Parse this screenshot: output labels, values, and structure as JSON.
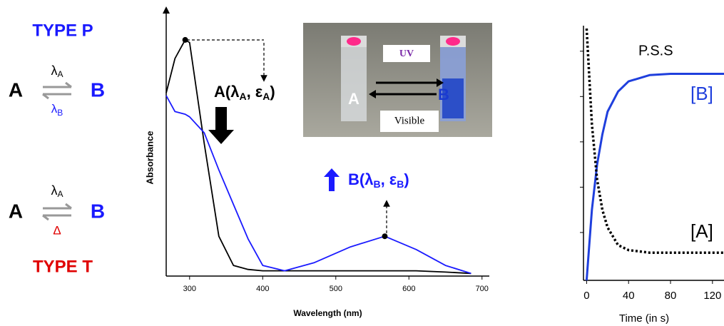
{
  "scheme": {
    "type_p": "TYPE P",
    "p_a": "A",
    "p_lambda_a": [
      "λ",
      "A"
    ],
    "p_lambda_b": [
      "λ",
      "B"
    ],
    "p_b": "B",
    "t_a": "A",
    "t_lambda_a": [
      "λ",
      "A"
    ],
    "t_delta": "Δ",
    "t_b": "B",
    "type_t": "TYPE T"
  },
  "photo": {
    "uv": "UV",
    "visible": "Visible",
    "a": "A",
    "b": "B"
  },
  "chart_data": [
    {
      "type": "line",
      "x_label": "Wavelength (nm)",
      "y_label": "Absorbance",
      "x": [
        268,
        280,
        294,
        300,
        320,
        340,
        360,
        380,
        400,
        430,
        470,
        520,
        567,
        610,
        650,
        685
      ],
      "series": [
        {
          "color": "#000000",
          "values": [
            0.69,
            0.82,
            0.89,
            0.88,
            0.5,
            0.15,
            0.04,
            0.025,
            0.02,
            0.02,
            0.02,
            0.02,
            0.02,
            0.02,
            0.015,
            0.01
          ]
        },
        {
          "color": "#1a1aff",
          "values": [
            0.68,
            0.62,
            0.61,
            0.6,
            0.54,
            0.4,
            0.27,
            0.14,
            0.04,
            0.02,
            0.05,
            0.11,
            0.15,
            0.1,
            0.04,
            0.01
          ]
        }
      ],
      "annotations": [
        {
          "parts": [
            "A(λ",
            "A",
            ", ε",
            "A",
            ")"
          ],
          "color": "#000000"
        },
        {
          "parts": [
            "B(λ",
            "B",
            ", ε",
            "B",
            ")"
          ],
          "color": "#1a1aff"
        }
      ],
      "xlim": [
        268,
        710
      ],
      "ylim": [
        0,
        1
      ],
      "xticks": [
        300,
        400,
        500,
        600,
        700
      ]
    },
    {
      "type": "line",
      "x_label": "Time (in s)",
      "x": [
        0,
        5,
        10,
        15,
        20,
        30,
        40,
        60,
        80,
        100,
        131
      ],
      "series": [
        {
          "name": "[B]",
          "color": "#1f3fdd",
          "linestyle": "solid",
          "values": [
            0,
            0.28,
            0.46,
            0.58,
            0.67,
            0.75,
            0.79,
            0.815,
            0.82,
            0.82,
            0.82
          ]
        },
        {
          "name": "[A]",
          "color": "#000000",
          "linestyle": "dotted",
          "values": [
            1.0,
            0.62,
            0.4,
            0.28,
            0.21,
            0.14,
            0.12,
            0.11,
            0.11,
            0.11,
            0.11
          ]
        }
      ],
      "annotations": [
        {
          "text": "P.S.S"
        }
      ],
      "xlim": [
        -3,
        131
      ],
      "ylim": [
        0,
        1
      ],
      "xticks": [
        0,
        40,
        80,
        120
      ],
      "yticks": [
        0.19,
        0.37,
        0.55,
        0.73,
        0.91
      ]
    }
  ]
}
